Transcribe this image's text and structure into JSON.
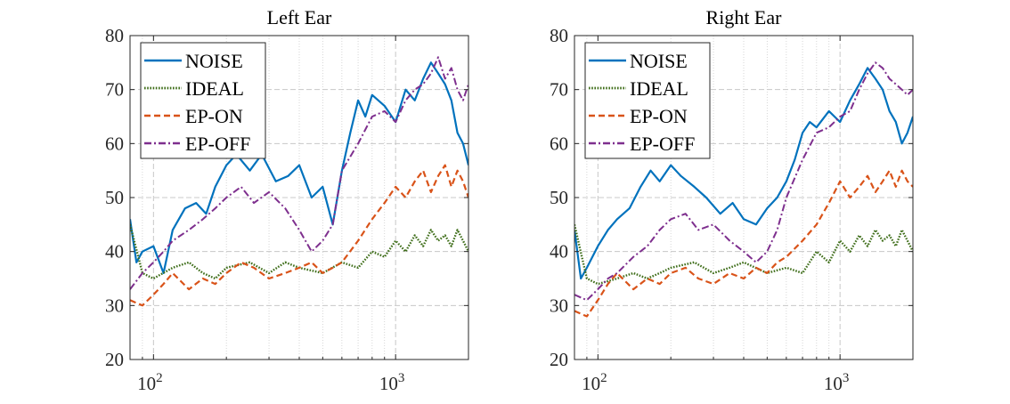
{
  "figure": {
    "legend": [
      {
        "name": "NOISE",
        "color": "#0072BD",
        "style": "solid"
      },
      {
        "name": "IDEAL",
        "color": "#3F6E1A",
        "style": "dotted"
      },
      {
        "name": "EP-ON",
        "color": "#D95319",
        "style": "dashed"
      },
      {
        "name": "EP-OFF",
        "color": "#7E2F8E",
        "style": "dashdot"
      }
    ]
  },
  "chart_data": [
    {
      "type": "line",
      "title": "Left Ear",
      "xlabel": "",
      "ylabel": "",
      "x_scale": "log",
      "xlim": [
        80,
        2000
      ],
      "ylim": [
        20,
        80
      ],
      "x_ticks": [
        100,
        1000
      ],
      "x_tick_labels": [
        {
          "base": "10",
          "exp": "2"
        },
        {
          "base": "10",
          "exp": "3"
        }
      ],
      "y_ticks": [
        20,
        30,
        40,
        50,
        60,
        70,
        80
      ],
      "grid": true,
      "legend_position": "top-left",
      "series": [
        {
          "name": "NOISE",
          "x": [
            80,
            85,
            90,
            100,
            110,
            120,
            135,
            150,
            165,
            180,
            200,
            220,
            250,
            280,
            320,
            360,
            400,
            450,
            500,
            550,
            600,
            650,
            700,
            750,
            800,
            900,
            1000,
            1100,
            1200,
            1300,
            1400,
            1500,
            1600,
            1700,
            1800,
            1900,
            2000
          ],
          "y": [
            46,
            38,
            40,
            41,
            36,
            44,
            48,
            49,
            47,
            52,
            56,
            58,
            55,
            58,
            53,
            54,
            56,
            50,
            52,
            45,
            55,
            62,
            68,
            65,
            69,
            67,
            64,
            70,
            68,
            72,
            75,
            73,
            71,
            68,
            62,
            60,
            56
          ]
        },
        {
          "name": "IDEAL",
          "x": [
            80,
            90,
            100,
            120,
            140,
            160,
            180,
            200,
            250,
            300,
            350,
            400,
            500,
            600,
            700,
            800,
            900,
            1000,
            1100,
            1200,
            1300,
            1400,
            1500,
            1600,
            1700,
            1800,
            1900,
            2000
          ],
          "y": [
            45,
            36,
            35,
            37,
            38,
            36,
            35,
            37,
            38,
            36,
            38,
            37,
            36,
            38,
            37,
            40,
            39,
            42,
            40,
            43,
            41,
            44,
            42,
            43,
            41,
            44,
            42,
            40
          ]
        },
        {
          "name": "EP-ON",
          "x": [
            80,
            90,
            100,
            110,
            120,
            140,
            160,
            180,
            200,
            230,
            260,
            300,
            350,
            400,
            450,
            500,
            550,
            600,
            700,
            800,
            900,
            1000,
            1100,
            1200,
            1300,
            1400,
            1500,
            1600,
            1700,
            1800,
            1900,
            2000
          ],
          "y": [
            31,
            30,
            32,
            34,
            36,
            33,
            35,
            34,
            36,
            38,
            37,
            35,
            36,
            37,
            38,
            36,
            37,
            38,
            42,
            46,
            49,
            52,
            50,
            53,
            55,
            51,
            54,
            56,
            52,
            55,
            53,
            50
          ]
        },
        {
          "name": "EP-OFF",
          "x": [
            80,
            90,
            100,
            110,
            120,
            140,
            160,
            180,
            200,
            230,
            260,
            300,
            350,
            400,
            450,
            500,
            550,
            600,
            700,
            800,
            900,
            1000,
            1100,
            1200,
            1300,
            1400,
            1500,
            1600,
            1700,
            1800,
            1900,
            2000
          ],
          "y": [
            33,
            36,
            38,
            40,
            42,
            44,
            46,
            48,
            50,
            52,
            49,
            51,
            48,
            44,
            40,
            42,
            45,
            55,
            60,
            65,
            66,
            64,
            68,
            70,
            71,
            73,
            76,
            72,
            74,
            70,
            68,
            71
          ]
        }
      ]
    },
    {
      "type": "line",
      "title": "Right Ear",
      "xlabel": "",
      "ylabel": "",
      "x_scale": "log",
      "xlim": [
        80,
        2000
      ],
      "ylim": [
        20,
        80
      ],
      "x_ticks": [
        100,
        1000
      ],
      "x_tick_labels": [
        {
          "base": "10",
          "exp": "2"
        },
        {
          "base": "10",
          "exp": "3"
        }
      ],
      "y_ticks": [
        20,
        30,
        40,
        50,
        60,
        70,
        80
      ],
      "grid": true,
      "legend_position": "top-left",
      "series": [
        {
          "name": "NOISE",
          "x": [
            80,
            85,
            90,
            100,
            110,
            120,
            135,
            150,
            165,
            180,
            200,
            220,
            250,
            280,
            320,
            360,
            400,
            450,
            500,
            550,
            600,
            650,
            700,
            750,
            800,
            900,
            1000,
            1100,
            1200,
            1300,
            1400,
            1500,
            1600,
            1700,
            1800,
            1900,
            2000
          ],
          "y": [
            44,
            35,
            37,
            41,
            44,
            46,
            48,
            52,
            55,
            53,
            56,
            54,
            52,
            50,
            47,
            49,
            46,
            45,
            48,
            50,
            53,
            57,
            62,
            64,
            63,
            66,
            64,
            68,
            71,
            74,
            72,
            70,
            66,
            64,
            60,
            62,
            65
          ]
        },
        {
          "name": "IDEAL",
          "x": [
            80,
            90,
            100,
            120,
            140,
            160,
            180,
            200,
            250,
            300,
            350,
            400,
            500,
            600,
            700,
            800,
            900,
            1000,
            1100,
            1200,
            1300,
            1400,
            1500,
            1600,
            1700,
            1800,
            1900,
            2000
          ],
          "y": [
            45,
            35,
            34,
            35,
            36,
            35,
            36,
            37,
            38,
            36,
            37,
            38,
            36,
            37,
            36,
            40,
            38,
            42,
            40,
            43,
            41,
            44,
            42,
            43,
            41,
            44,
            42,
            40
          ]
        },
        {
          "name": "EP-ON",
          "x": [
            80,
            90,
            100,
            110,
            120,
            140,
            160,
            180,
            200,
            230,
            260,
            300,
            350,
            400,
            450,
            500,
            550,
            600,
            700,
            800,
            900,
            1000,
            1100,
            1200,
            1300,
            1400,
            1500,
            1600,
            1700,
            1800,
            1900,
            2000
          ],
          "y": [
            29,
            28,
            31,
            34,
            36,
            33,
            35,
            34,
            36,
            37,
            35,
            34,
            36,
            35,
            37,
            36,
            38,
            39,
            42,
            45,
            49,
            53,
            50,
            52,
            54,
            51,
            53,
            55,
            52,
            55,
            53,
            52
          ]
        },
        {
          "name": "EP-OFF",
          "x": [
            80,
            90,
            100,
            110,
            120,
            140,
            160,
            180,
            200,
            230,
            260,
            300,
            350,
            400,
            450,
            500,
            550,
            600,
            700,
            800,
            900,
            1000,
            1100,
            1200,
            1300,
            1400,
            1500,
            1600,
            1700,
            1800,
            1900,
            2000
          ],
          "y": [
            32,
            31,
            33,
            35,
            36,
            39,
            41,
            44,
            46,
            47,
            44,
            45,
            42,
            40,
            38,
            40,
            44,
            50,
            57,
            62,
            63,
            65,
            66,
            70,
            73,
            75,
            74,
            72,
            71,
            70,
            69,
            70
          ]
        }
      ]
    }
  ]
}
